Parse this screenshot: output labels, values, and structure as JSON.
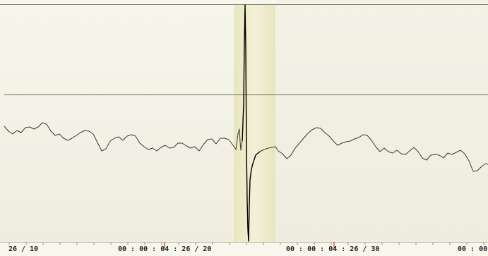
{
  "timeline": {
    "labels": [
      "26 / 10",
      "00 : 00 : 04 : 26 / 20",
      "00 : 00 : 04 : 26 / 30",
      "00 : 00"
    ]
  },
  "colors": {
    "background_top": "#f6f5ea",
    "background_bottom": "#f0efe0",
    "selection_band": "#ebe9c4",
    "waveform_line": "#333333",
    "spike_line": "#000000",
    "reference_line": "#6b6b55",
    "ruler_background": "#f8f7ee",
    "ruler_marker": "#d63a2b"
  },
  "icons": []
}
